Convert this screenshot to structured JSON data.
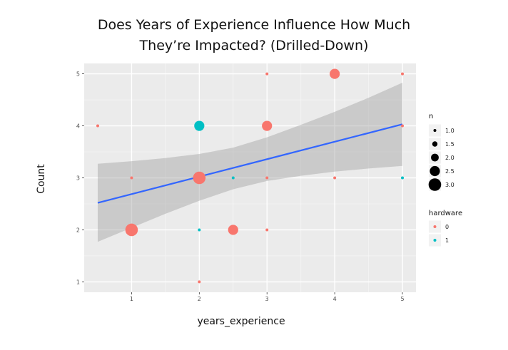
{
  "chart_data": {
    "type": "scatter",
    "title_line1": "Does Years of Experience Influence How Much",
    "title_line2": "They’re Impacted? (Drilled-Down)",
    "xlabel": "years_experience",
    "ylabel": "Count",
    "xlim": [
      0.3,
      5.2
    ],
    "ylim": [
      0.8,
      5.2
    ],
    "x_ticks": [
      1,
      2,
      3,
      4,
      5
    ],
    "y_ticks": [
      1,
      2,
      3,
      4,
      5
    ],
    "grid": true,
    "legend_position": "right",
    "size_legend": {
      "title": "n",
      "values": [
        "1.0",
        "1.5",
        "2.0",
        "2.5",
        "3.0"
      ]
    },
    "color_legend": {
      "title": "hardware",
      "entries": [
        {
          "label": "0",
          "color": "#F8766D"
        },
        {
          "label": "1",
          "color": "#00BFC4"
        }
      ]
    },
    "points": [
      {
        "x": 0.5,
        "y": 4,
        "n": 1,
        "hardware": "0"
      },
      {
        "x": 1,
        "y": 3,
        "n": 1,
        "hardware": "0"
      },
      {
        "x": 1,
        "y": 2,
        "n": 3,
        "hardware": "0"
      },
      {
        "x": 2,
        "y": 4,
        "n": 2.5,
        "hardware": "1"
      },
      {
        "x": 2,
        "y": 3,
        "n": 3,
        "hardware": "0"
      },
      {
        "x": 2,
        "y": 2,
        "n": 1,
        "hardware": "1"
      },
      {
        "x": 2,
        "y": 1,
        "n": 1,
        "hardware": "0"
      },
      {
        "x": 2.5,
        "y": 3,
        "n": 1,
        "hardware": "1"
      },
      {
        "x": 2.5,
        "y": 2,
        "n": 2.5,
        "hardware": "0"
      },
      {
        "x": 3,
        "y": 5,
        "n": 1,
        "hardware": "0"
      },
      {
        "x": 3,
        "y": 4,
        "n": 2.5,
        "hardware": "0"
      },
      {
        "x": 3,
        "y": 3,
        "n": 1,
        "hardware": "0"
      },
      {
        "x": 3,
        "y": 2,
        "n": 1,
        "hardware": "0"
      },
      {
        "x": 4,
        "y": 5,
        "n": 2.5,
        "hardware": "0"
      },
      {
        "x": 4,
        "y": 3,
        "n": 1,
        "hardware": "0"
      },
      {
        "x": 5,
        "y": 5,
        "n": 1,
        "hardware": "0"
      },
      {
        "x": 5,
        "y": 4,
        "n": 1,
        "hardware": "0"
      },
      {
        "x": 5,
        "y": 3,
        "n": 1,
        "hardware": "1"
      }
    ],
    "trend_line": {
      "x": [
        0.5,
        5
      ],
      "y": [
        2.52,
        4.03
      ],
      "ci_upper": [
        {
          "x": 0.5,
          "y": 3.27
        },
        {
          "x": 1,
          "y": 3.32
        },
        {
          "x": 1.5,
          "y": 3.38
        },
        {
          "x": 2,
          "y": 3.46
        },
        {
          "x": 2.5,
          "y": 3.58
        },
        {
          "x": 3,
          "y": 3.78
        },
        {
          "x": 3.5,
          "y": 4.02
        },
        {
          "x": 4,
          "y": 4.27
        },
        {
          "x": 4.5,
          "y": 4.54
        },
        {
          "x": 5,
          "y": 4.83
        }
      ],
      "ci_lower": [
        {
          "x": 0.5,
          "y": 1.77
        },
        {
          "x": 1,
          "y": 2.04
        },
        {
          "x": 1.5,
          "y": 2.31
        },
        {
          "x": 2,
          "y": 2.56
        },
        {
          "x": 2.5,
          "y": 2.78
        },
        {
          "x": 3,
          "y": 2.94
        },
        {
          "x": 3.5,
          "y": 3.04
        },
        {
          "x": 4,
          "y": 3.12
        },
        {
          "x": 4.5,
          "y": 3.18
        },
        {
          "x": 5,
          "y": 3.23
        }
      ]
    },
    "colors": {
      "line": "#3366FF",
      "ribbon": "#999999",
      "panel": "#EBEBEB"
    }
  }
}
